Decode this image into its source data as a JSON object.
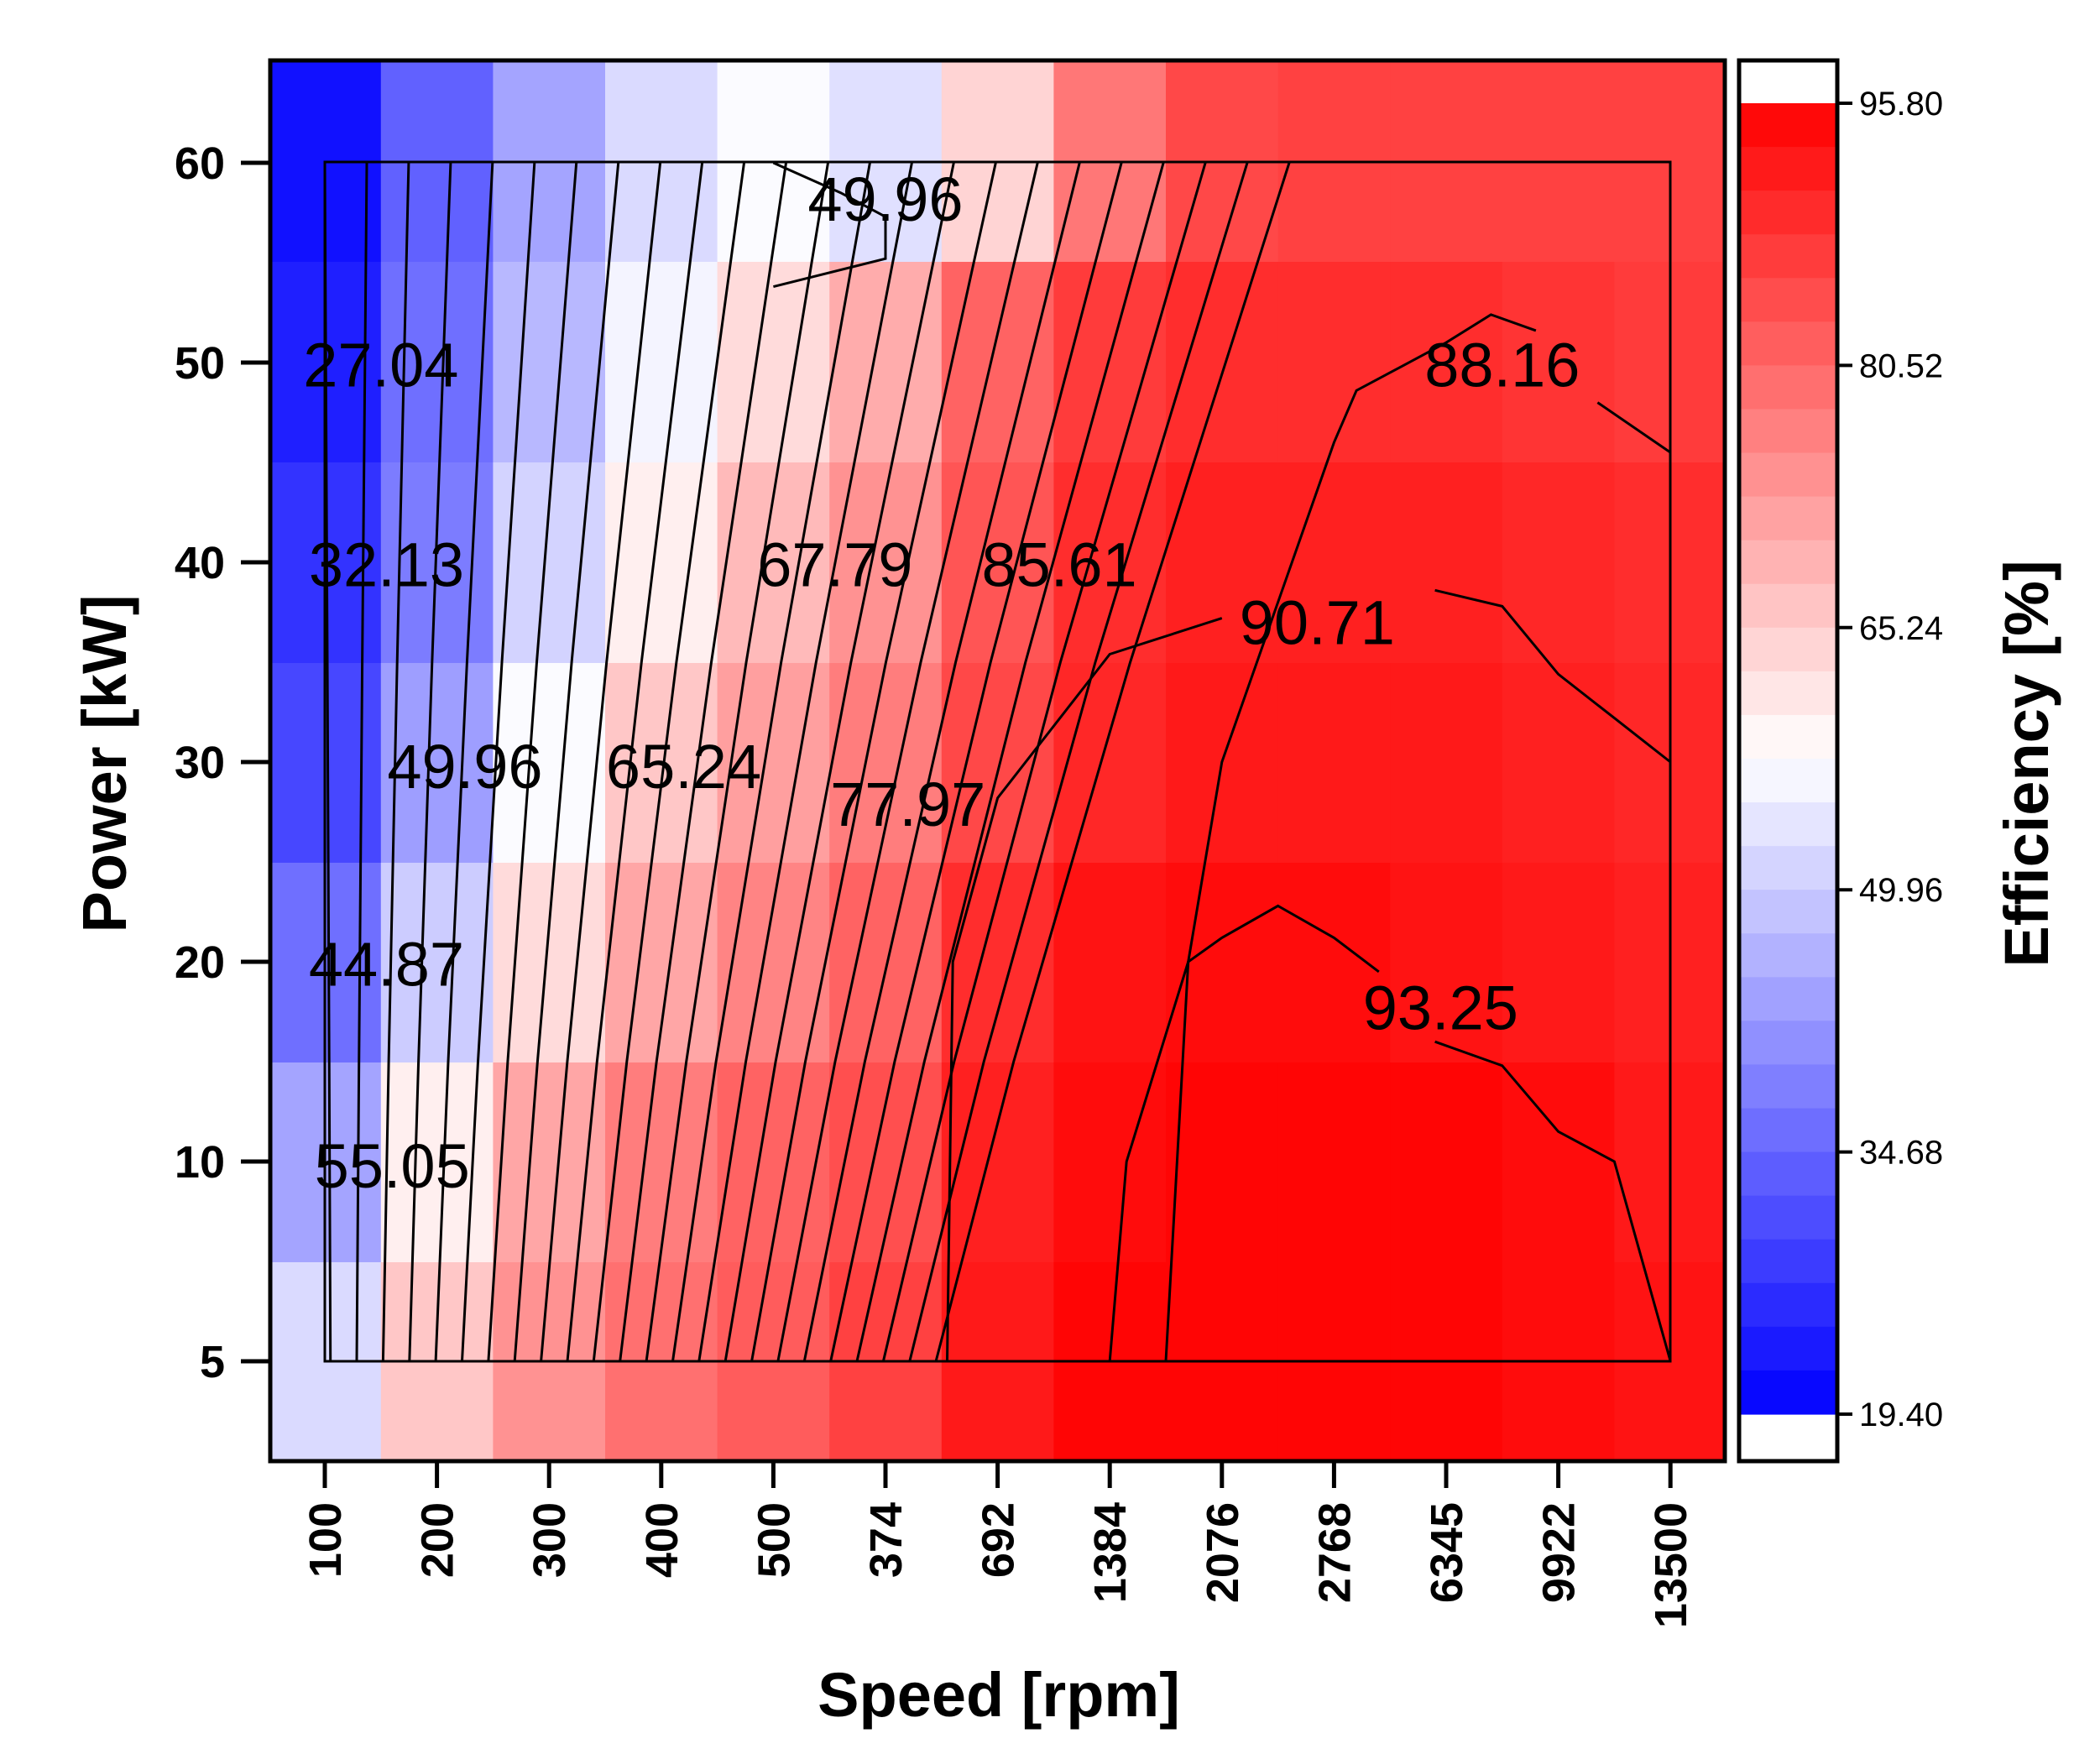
{
  "chart_data": {
    "type": "heatmap",
    "xlabel": "Speed [rpm]",
    "ylabel": "Power [kW]",
    "colorbar_label": "Efficiency [%]",
    "x_categories": [
      "100",
      "200",
      "300",
      "400",
      "500",
      "374",
      "692",
      "1384",
      "2076",
      "2768",
      "6345",
      "9922",
      "13500"
    ],
    "y_ticks": [
      5,
      10,
      20,
      30,
      40,
      50,
      60
    ],
    "y_rows": [
      60,
      50,
      40,
      30,
      20,
      10,
      5
    ],
    "colorbar_ticks": [
      "95.80",
      "80.52",
      "65.24",
      "49.96",
      "34.68",
      "19.40"
    ],
    "colorbar_range": [
      19.4,
      95.8
    ],
    "efficiency_grid": [
      [
        22,
        34,
        44,
        52,
        57,
        53,
        64,
        78,
        85,
        86,
        86,
        86,
        86
      ],
      [
        24,
        36,
        47,
        56,
        63,
        70,
        81,
        87,
        89,
        89,
        89,
        88,
        87
      ],
      [
        27,
        38,
        51,
        60,
        68,
        74,
        83,
        89,
        91,
        91,
        91,
        90,
        89
      ],
      [
        30,
        43,
        57,
        66,
        72,
        77,
        85,
        90,
        92,
        92,
        92,
        91,
        90
      ],
      [
        36,
        50,
        63,
        71,
        76,
        81,
        89,
        93,
        94,
        94,
        93,
        92,
        91
      ],
      [
        44,
        60,
        71,
        77,
        81,
        84,
        91,
        94,
        95,
        95,
        95,
        94,
        92
      ],
      [
        52,
        66,
        74,
        79,
        82,
        86,
        92,
        95,
        95,
        95,
        95,
        94,
        93
      ]
    ],
    "contour_labels": [
      {
        "text": "49.96",
        "x_index": 5.0,
        "y_value": 58.2
      },
      {
        "text": "27.04",
        "x_index": 0.5,
        "y_value": 49.9
      },
      {
        "text": "88.16",
        "x_index": 10.5,
        "y_value": 49.9
      },
      {
        "text": "32.13",
        "x_index": 0.55,
        "y_value": 39.9
      },
      {
        "text": "67.79",
        "x_index": 4.55,
        "y_value": 39.9
      },
      {
        "text": "85.61",
        "x_index": 6.55,
        "y_value": 39.9
      },
      {
        "text": "90.71",
        "x_index": 8.85,
        "y_value": 37.0
      },
      {
        "text": "49.96",
        "x_index": 1.25,
        "y_value": 29.8
      },
      {
        "text": "65.24",
        "x_index": 3.2,
        "y_value": 29.8
      },
      {
        "text": "77.97",
        "x_index": 5.2,
        "y_value": 27.9
      },
      {
        "text": "44.87",
        "x_index": 0.55,
        "y_value": 19.9
      },
      {
        "text": "93.25",
        "x_index": 9.95,
        "y_value": 17.7
      },
      {
        "text": "55.05",
        "x_index": 0.6,
        "y_value": 9.9
      }
    ],
    "contour_lines": [
      [
        [
          7.5,
          5
        ],
        [
          7.6,
          10
        ],
        [
          7.7,
          20
        ],
        [
          8.0,
          21.2
        ],
        [
          8.5,
          22.8
        ],
        [
          9.0,
          21.2
        ],
        [
          9.4,
          19.5
        ]
      ],
      [
        [
          9.9,
          16
        ],
        [
          10.5,
          14.8
        ],
        [
          11.0,
          11.5
        ],
        [
          11.5,
          10.0
        ],
        [
          12.0,
          5
        ]
      ],
      [
        [
          5.55,
          5
        ],
        [
          5.6,
          20
        ],
        [
          6.0,
          28.2
        ],
        [
          7.0,
          35.4
        ],
        [
          8.0,
          37.2
        ]
      ],
      [
        [
          9.9,
          38.6
        ],
        [
          10.5,
          37.8
        ],
        [
          11.0,
          34.4
        ],
        [
          11.5,
          32.2
        ],
        [
          12.0,
          30
        ]
      ],
      [
        [
          7.0,
          5
        ],
        [
          7.15,
          10
        ],
        [
          7.7,
          20
        ],
        [
          8.0,
          30
        ],
        [
          9.0,
          46
        ],
        [
          9.2,
          48.6
        ],
        [
          9.6,
          49.8
        ],
        [
          10.0,
          51
        ],
        [
          10.4,
          52.4
        ],
        [
          10.8,
          51.6
        ]
      ],
      [
        [
          11.35,
          48
        ],
        [
          12.0,
          45.5
        ]
      ],
      [
        [
          4.0,
          60
        ],
        [
          4.6,
          58.5
        ],
        [
          5.0,
          57.3
        ],
        [
          5.0,
          55.2
        ],
        [
          4.0,
          53.8
        ]
      ]
    ]
  }
}
